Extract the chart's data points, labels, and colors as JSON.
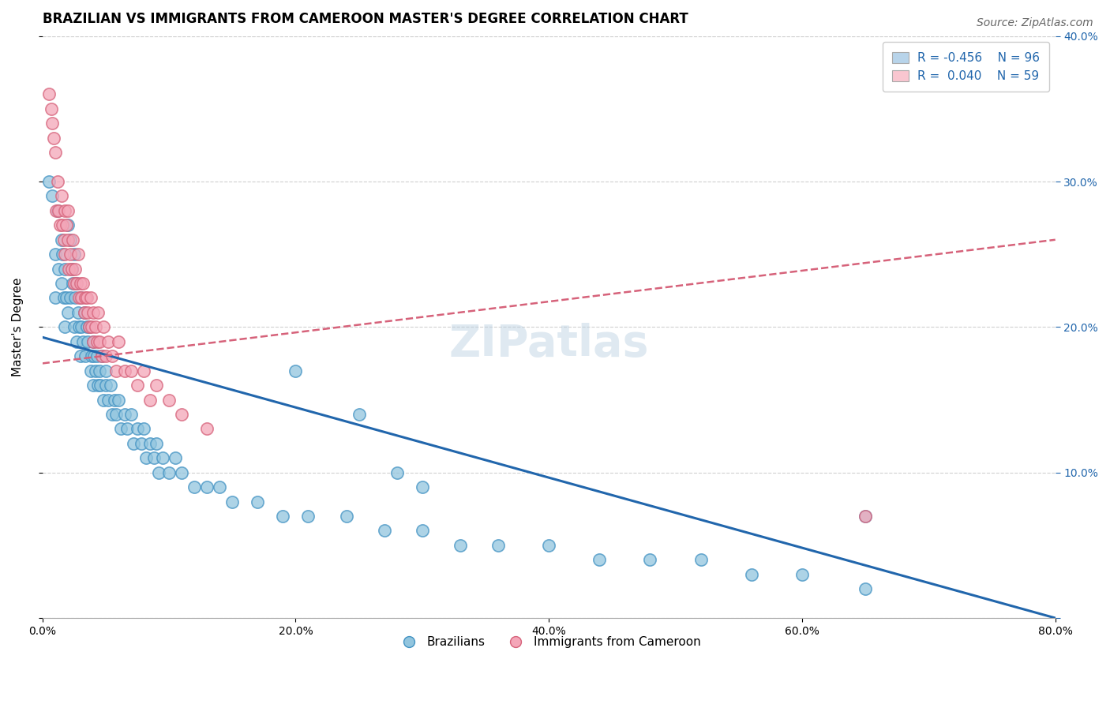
{
  "title": "BRAZILIAN VS IMMIGRANTS FROM CAMEROON MASTER'S DEGREE CORRELATION CHART",
  "source": "Source: ZipAtlas.com",
  "xlabel": "",
  "ylabel": "Master's Degree",
  "legend_label1": "Brazilians",
  "legend_label2": "Immigrants from Cameroon",
  "watermark": "ZIPatlas",
  "blue_R": -0.456,
  "blue_N": 96,
  "pink_R": 0.04,
  "pink_N": 59,
  "blue_color": "#92c5de",
  "pink_color": "#f4a6b8",
  "blue_edge_color": "#4393c3",
  "pink_edge_color": "#d6627a",
  "blue_line_color": "#2166ac",
  "pink_line_color": "#d6627a",
  "xlim": [
    0.0,
    0.8
  ],
  "ylim": [
    0.0,
    0.4
  ],
  "xticks": [
    0.0,
    0.2,
    0.4,
    0.6,
    0.8
  ],
  "yticks": [
    0.0,
    0.1,
    0.2,
    0.3,
    0.4
  ],
  "xticklabels": [
    "0.0%",
    "20.0%",
    "40.0%",
    "60.0%",
    "80.0%"
  ],
  "right_yticklabels": [
    "",
    "10.0%",
    "20.0%",
    "30.0%",
    "40.0%"
  ],
  "blue_trend_x0": 0.0,
  "blue_trend_y0": 0.193,
  "blue_trend_x1": 0.8,
  "blue_trend_y1": 0.0,
  "pink_trend_x0": 0.0,
  "pink_trend_y0": 0.175,
  "pink_trend_x1": 0.8,
  "pink_trend_y1": 0.26,
  "blue_x": [
    0.005,
    0.008,
    0.01,
    0.01,
    0.012,
    0.013,
    0.015,
    0.015,
    0.016,
    0.017,
    0.018,
    0.018,
    0.019,
    0.02,
    0.02,
    0.022,
    0.022,
    0.023,
    0.024,
    0.025,
    0.025,
    0.026,
    0.027,
    0.027,
    0.028,
    0.029,
    0.03,
    0.03,
    0.031,
    0.032,
    0.033,
    0.034,
    0.035,
    0.036,
    0.037,
    0.038,
    0.039,
    0.04,
    0.04,
    0.041,
    0.042,
    0.043,
    0.044,
    0.045,
    0.046,
    0.047,
    0.048,
    0.05,
    0.05,
    0.052,
    0.054,
    0.055,
    0.057,
    0.058,
    0.06,
    0.062,
    0.065,
    0.067,
    0.07,
    0.072,
    0.075,
    0.078,
    0.08,
    0.082,
    0.085,
    0.088,
    0.09,
    0.092,
    0.095,
    0.1,
    0.105,
    0.11,
    0.12,
    0.13,
    0.14,
    0.15,
    0.17,
    0.19,
    0.21,
    0.24,
    0.27,
    0.3,
    0.33,
    0.36,
    0.4,
    0.44,
    0.48,
    0.52,
    0.56,
    0.6,
    0.65,
    0.65,
    0.2,
    0.25,
    0.28,
    0.3
  ],
  "blue_y": [
    0.3,
    0.29,
    0.25,
    0.22,
    0.28,
    0.24,
    0.26,
    0.23,
    0.25,
    0.22,
    0.24,
    0.2,
    0.22,
    0.27,
    0.21,
    0.26,
    0.22,
    0.24,
    0.23,
    0.25,
    0.2,
    0.22,
    0.23,
    0.19,
    0.21,
    0.2,
    0.22,
    0.18,
    0.2,
    0.19,
    0.21,
    0.18,
    0.2,
    0.19,
    0.2,
    0.17,
    0.18,
    0.19,
    0.16,
    0.18,
    0.17,
    0.18,
    0.16,
    0.17,
    0.16,
    0.18,
    0.15,
    0.17,
    0.16,
    0.15,
    0.16,
    0.14,
    0.15,
    0.14,
    0.15,
    0.13,
    0.14,
    0.13,
    0.14,
    0.12,
    0.13,
    0.12,
    0.13,
    0.11,
    0.12,
    0.11,
    0.12,
    0.1,
    0.11,
    0.1,
    0.11,
    0.1,
    0.09,
    0.09,
    0.09,
    0.08,
    0.08,
    0.07,
    0.07,
    0.07,
    0.06,
    0.06,
    0.05,
    0.05,
    0.05,
    0.04,
    0.04,
    0.04,
    0.03,
    0.03,
    0.07,
    0.02,
    0.17,
    0.14,
    0.1,
    0.09
  ],
  "pink_x": [
    0.005,
    0.007,
    0.008,
    0.009,
    0.01,
    0.011,
    0.012,
    0.013,
    0.014,
    0.015,
    0.016,
    0.017,
    0.018,
    0.018,
    0.019,
    0.02,
    0.02,
    0.021,
    0.022,
    0.023,
    0.024,
    0.025,
    0.026,
    0.027,
    0.028,
    0.029,
    0.03,
    0.031,
    0.032,
    0.033,
    0.034,
    0.035,
    0.036,
    0.037,
    0.038,
    0.039,
    0.04,
    0.04,
    0.042,
    0.043,
    0.044,
    0.045,
    0.047,
    0.048,
    0.05,
    0.052,
    0.055,
    0.058,
    0.06,
    0.065,
    0.07,
    0.075,
    0.08,
    0.085,
    0.09,
    0.1,
    0.11,
    0.13,
    0.65
  ],
  "pink_y": [
    0.36,
    0.35,
    0.34,
    0.33,
    0.32,
    0.28,
    0.3,
    0.28,
    0.27,
    0.29,
    0.27,
    0.26,
    0.28,
    0.25,
    0.27,
    0.26,
    0.28,
    0.24,
    0.25,
    0.24,
    0.26,
    0.23,
    0.24,
    0.23,
    0.25,
    0.22,
    0.23,
    0.22,
    0.23,
    0.21,
    0.22,
    0.22,
    0.21,
    0.2,
    0.22,
    0.2,
    0.21,
    0.19,
    0.2,
    0.19,
    0.21,
    0.19,
    0.18,
    0.2,
    0.18,
    0.19,
    0.18,
    0.17,
    0.19,
    0.17,
    0.17,
    0.16,
    0.17,
    0.15,
    0.16,
    0.15,
    0.14,
    0.13,
    0.07
  ],
  "title_fontsize": 12,
  "axis_label_fontsize": 11,
  "tick_fontsize": 10,
  "legend_fontsize": 11,
  "source_fontsize": 10,
  "watermark_fontsize": 40,
  "marker_size": 11,
  "marker_linewidth": 1.2,
  "blue_legend_color": "#b8d4ea",
  "pink_legend_color": "#f9c6d0",
  "legend_R_color": "#2166ac",
  "right_axis_color": "#2166ac",
  "grid_color": "#d0d0d0"
}
